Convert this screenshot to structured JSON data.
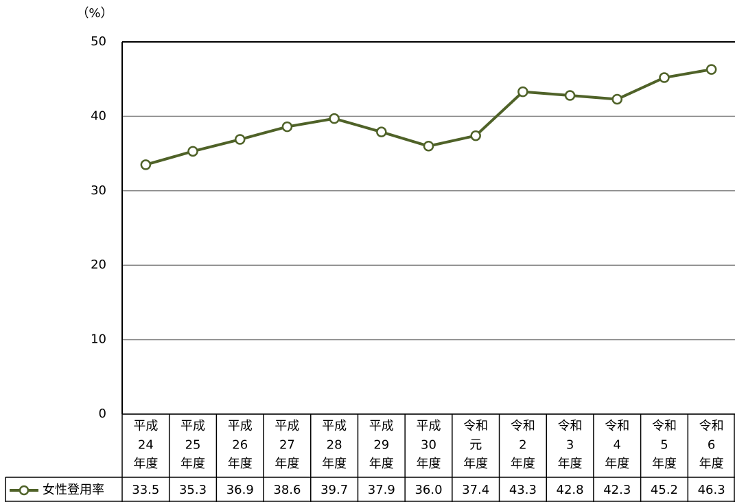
{
  "chart_data": {
    "type": "line",
    "y_unit": "（%）",
    "categories": [
      [
        "平成",
        "24",
        "年度"
      ],
      [
        "平成",
        "25",
        "年度"
      ],
      [
        "平成",
        "26",
        "年度"
      ],
      [
        "平成",
        "27",
        "年度"
      ],
      [
        "平成",
        "28",
        "年度"
      ],
      [
        "平成",
        "29",
        "年度"
      ],
      [
        "平成",
        "30",
        "年度"
      ],
      [
        "令和",
        "元",
        "年度"
      ],
      [
        "令和",
        "2",
        "年度"
      ],
      [
        "令和",
        "3",
        "年度"
      ],
      [
        "令和",
        "4",
        "年度"
      ],
      [
        "令和",
        "5",
        "年度"
      ],
      [
        "令和",
        "6",
        "年度"
      ]
    ],
    "series": [
      {
        "name": "女性登用率",
        "color": "#4f6228",
        "values": [
          33.5,
          35.3,
          36.9,
          38.6,
          39.7,
          37.9,
          36.0,
          37.4,
          43.3,
          42.8,
          42.3,
          45.2,
          46.3
        ],
        "value_labels": [
          "33.5",
          "35.3",
          "36.9",
          "38.6",
          "39.7",
          "37.9",
          "36.0",
          "37.4",
          "43.3",
          "42.8",
          "42.3",
          "45.2",
          "46.3"
        ]
      }
    ],
    "ylim": [
      0,
      50
    ],
    "yticks": [
      0,
      10,
      20,
      30,
      40,
      50
    ],
    "grid": true
  }
}
